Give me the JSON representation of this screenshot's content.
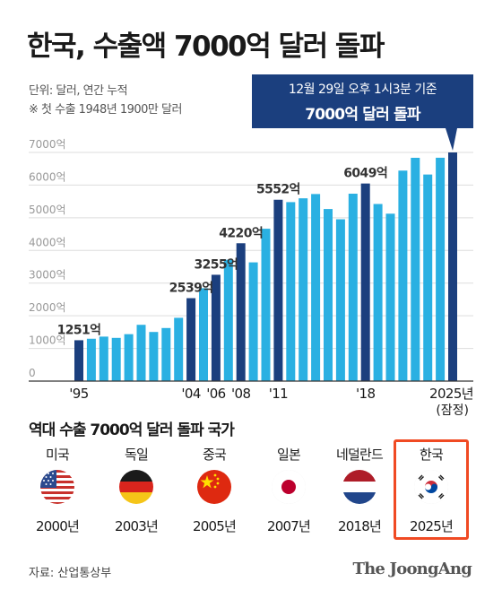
{
  "header": {
    "title": "한국, 수출액 7000억 달러 돌파",
    "unit_note": "단위: 달러, 연간 누적",
    "first_export_note": "※ 첫 수출 1948년 1900만 달러"
  },
  "callout": {
    "line1": "12월 29일 오후 1시3분 기준",
    "line2": "7000억 달러 돌파"
  },
  "chart_data": {
    "type": "bar",
    "ylim": [
      0,
      7000
    ],
    "yticks": [
      "0",
      "1000억",
      "2000억",
      "3000억",
      "4000억",
      "5000억",
      "6000억",
      "7000억"
    ],
    "categories": [
      "1995",
      "1996",
      "1997",
      "1998",
      "1999",
      "2000",
      "2001",
      "2002",
      "2003",
      "2004",
      "2005",
      "2006",
      "2007",
      "2008",
      "2009",
      "2010",
      "2011",
      "2012",
      "2013",
      "2014",
      "2015",
      "2016",
      "2017",
      "2018",
      "2019",
      "2020",
      "2021",
      "2022",
      "2023",
      "2024",
      "2025"
    ],
    "values": [
      1251,
      1297,
      1362,
      1323,
      1437,
      1723,
      1504,
      1625,
      1938,
      2539,
      2844,
      3255,
      3715,
      4220,
      3635,
      4664,
      5552,
      5479,
      5596,
      5727,
      5268,
      4954,
      5737,
      6049,
      5422,
      5125,
      6444,
      6836,
      6324,
      6838,
      7000
    ],
    "highlighted": [
      "1995",
      "2004",
      "2006",
      "2008",
      "2011",
      "2018",
      "2025"
    ],
    "x_tick_labels": [
      {
        "category": "1995",
        "label": "'95"
      },
      {
        "category": "2004",
        "label": "'04"
      },
      {
        "category": "2006",
        "label": "'06"
      },
      {
        "category": "2008",
        "label": "'08"
      },
      {
        "category": "2011",
        "label": "'11"
      },
      {
        "category": "2018",
        "label": "'18"
      },
      {
        "category": "2025",
        "label": "2025년"
      }
    ],
    "x_tick_sublabel": "(잠정)",
    "data_labels": [
      {
        "category": "1995",
        "label": "1251억"
      },
      {
        "category": "2004",
        "label": "2539억"
      },
      {
        "category": "2006",
        "label": "3255억"
      },
      {
        "category": "2008",
        "label": "4220억"
      },
      {
        "category": "2011",
        "label": "5552억"
      },
      {
        "category": "2018",
        "label": "6049억"
      }
    ],
    "colors": {
      "default": "#2ab0e2",
      "highlight": "#1b3f7e",
      "grid": "#dddddd",
      "axis": "#333333"
    }
  },
  "section": {
    "title": "역대 수출 7000억 달러 돌파 국가",
    "countries": [
      {
        "name": "미국",
        "year": "2000년",
        "flag": "usa-flag-icon"
      },
      {
        "name": "독일",
        "year": "2003년",
        "flag": "germany-flag-icon"
      },
      {
        "name": "중국",
        "year": "2005년",
        "flag": "china-flag-icon"
      },
      {
        "name": "일본",
        "year": "2007년",
        "flag": "japan-flag-icon"
      },
      {
        "name": "네덜란드",
        "year": "2018년",
        "flag": "netherlands-flag-icon"
      },
      {
        "name": "한국",
        "year": "2025년",
        "flag": "korea-flag-icon"
      }
    ],
    "highlight_color": "#f04a23"
  },
  "footer": {
    "source": "자료: 산업통상부",
    "logo": "The JoongAng"
  }
}
